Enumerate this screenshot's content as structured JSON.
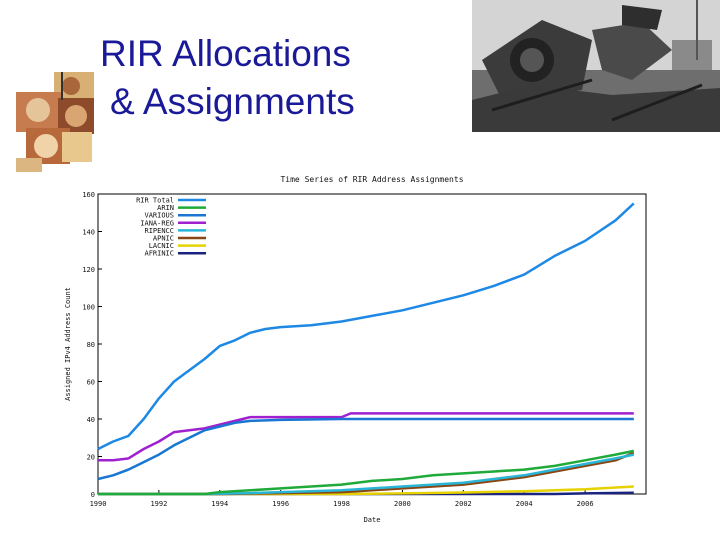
{
  "slide": {
    "title_line1": "RIR Allocations",
    "title_line2": "& Assignments",
    "title_color": "#1a1a99"
  },
  "decorations": {
    "left_image": "collage-of-faces-image",
    "right_image": "train-wreck-photo"
  },
  "chart_data": {
    "type": "line",
    "title": "Time Series of RIR Address Assignments",
    "xlabel": "Date",
    "ylabel": "Assigned IPv4 Address Count",
    "xlim": [
      1990,
      2008
    ],
    "ylim": [
      0,
      160
    ],
    "x_ticks": [
      "1990",
      "1992",
      "1994",
      "1996",
      "1998",
      "2000",
      "2002",
      "2004",
      "2006"
    ],
    "y_ticks": [
      "0",
      "20",
      "40",
      "60",
      "80",
      "100",
      "120",
      "140",
      "160"
    ],
    "grid": false,
    "legend_position": "top-left",
    "series": [
      {
        "name": "RIR Total",
        "color": "#1e88e5",
        "points": [
          [
            1990,
            24
          ],
          [
            1990.5,
            28
          ],
          [
            1991,
            31
          ],
          [
            1991.5,
            40
          ],
          [
            1992,
            51
          ],
          [
            1992.5,
            60
          ],
          [
            1993,
            66
          ],
          [
            1993.5,
            72
          ],
          [
            1994,
            79
          ],
          [
            1994.5,
            82
          ],
          [
            1995,
            86
          ],
          [
            1995.5,
            88
          ],
          [
            1996,
            89
          ],
          [
            1997,
            90
          ],
          [
            1998,
            92
          ],
          [
            1999,
            95
          ],
          [
            2000,
            98
          ],
          [
            2001,
            102
          ],
          [
            2002,
            106
          ],
          [
            2003,
            111
          ],
          [
            2004,
            117
          ],
          [
            2005,
            127
          ],
          [
            2006,
            135
          ],
          [
            2007,
            146
          ],
          [
            2007.6,
            155
          ]
        ]
      },
      {
        "name": "ARIN",
        "color": "#1faa3a",
        "points": [
          [
            1990,
            0
          ],
          [
            1993.5,
            0
          ],
          [
            1994,
            1
          ],
          [
            1995,
            2
          ],
          [
            1996,
            3
          ],
          [
            1997,
            4
          ],
          [
            1998,
            5
          ],
          [
            1999,
            7
          ],
          [
            2000,
            8
          ],
          [
            2001,
            10
          ],
          [
            2002,
            11
          ],
          [
            2003,
            12
          ],
          [
            2004,
            13
          ],
          [
            2005,
            15
          ],
          [
            2006,
            18
          ],
          [
            2007,
            21
          ],
          [
            2007.6,
            23
          ]
        ]
      },
      {
        "name": "VARIOUS",
        "color": "#1976d2",
        "points": [
          [
            1990,
            8
          ],
          [
            1990.5,
            10
          ],
          [
            1991,
            13
          ],
          [
            1991.5,
            17
          ],
          [
            1992,
            21
          ],
          [
            1992.5,
            26
          ],
          [
            1993,
            30
          ],
          [
            1993.5,
            34
          ],
          [
            1994,
            36
          ],
          [
            1994.5,
            38
          ],
          [
            1995,
            39
          ],
          [
            1996,
            39.5
          ],
          [
            1998,
            40
          ],
          [
            2002,
            40
          ],
          [
            2007.6,
            40
          ]
        ]
      },
      {
        "name": "IANA-REG",
        "color": "#a020d0",
        "points": [
          [
            1990,
            18
          ],
          [
            1990.5,
            18
          ],
          [
            1991,
            19
          ],
          [
            1991.5,
            24
          ],
          [
            1992,
            28
          ],
          [
            1992.5,
            33
          ],
          [
            1993,
            34
          ],
          [
            1993.5,
            35
          ],
          [
            1994,
            37
          ],
          [
            1994.5,
            39
          ],
          [
            1995,
            41
          ],
          [
            1998,
            41
          ],
          [
            1998.3,
            43
          ],
          [
            2007.6,
            43
          ]
        ]
      },
      {
        "name": "RIPENCC",
        "color": "#29b6d6",
        "points": [
          [
            1990,
            0
          ],
          [
            1993.5,
            0
          ],
          [
            1995,
            0.5
          ],
          [
            1996,
            1
          ],
          [
            1997,
            1.5
          ],
          [
            1998,
            2
          ],
          [
            1999,
            3
          ],
          [
            2000,
            4
          ],
          [
            2001,
            5
          ],
          [
            2002,
            6
          ],
          [
            2003,
            8
          ],
          [
            2004,
            10
          ],
          [
            2005,
            13
          ],
          [
            2006,
            16
          ],
          [
            2007,
            19
          ],
          [
            2007.6,
            21
          ]
        ]
      },
      {
        "name": "APNIC",
        "color": "#8b4513",
        "points": [
          [
            1990,
            0
          ],
          [
            1994,
            0
          ],
          [
            1996,
            0.5
          ],
          [
            1998,
            1
          ],
          [
            1999,
            2
          ],
          [
            2000,
            3
          ],
          [
            2001,
            4
          ],
          [
            2002,
            5
          ],
          [
            2003,
            7
          ],
          [
            2004,
            9
          ],
          [
            2005,
            12
          ],
          [
            2006,
            15
          ],
          [
            2007,
            18
          ],
          [
            2007.6,
            22
          ]
        ]
      },
      {
        "name": "LACNIC",
        "color": "#e6d200",
        "points": [
          [
            1990,
            0
          ],
          [
            1998,
            0
          ],
          [
            2000,
            0.3
          ],
          [
            2002,
            0.8
          ],
          [
            2004,
            1.5
          ],
          [
            2006,
            2.5
          ],
          [
            2007.6,
            4
          ]
        ]
      },
      {
        "name": "AFRINIC",
        "color": "#1a237e",
        "points": [
          [
            1990,
            0
          ],
          [
            2005,
            0
          ],
          [
            2006,
            0.3
          ],
          [
            2007.6,
            0.7
          ]
        ]
      }
    ]
  }
}
